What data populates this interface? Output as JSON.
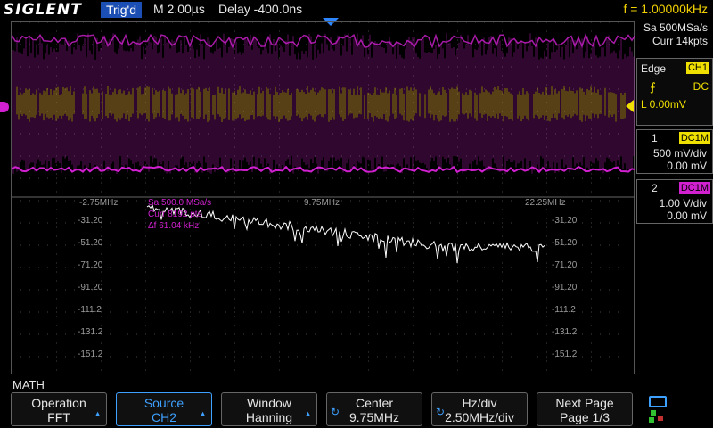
{
  "header": {
    "brand": "SIGLENT",
    "trigger_state": "Trig'd",
    "timebase": "M 2.00µs",
    "delay": "Delay -400.0ns",
    "frequency": "f = 1.00000kHz"
  },
  "acquisition": {
    "sample_rate": "Sa 500MSa/s",
    "memory_depth": "Curr 14kpts"
  },
  "trigger": {
    "type": "Edge",
    "source": "CH1",
    "coupling": "DC",
    "level": "L  0.00mV"
  },
  "channels": [
    {
      "number": "1",
      "coupling": "DC1M",
      "scale": "500 mV/div",
      "offset": "0.00 mV",
      "color": "#f0e000"
    },
    {
      "number": "2",
      "coupling": "DC1M",
      "scale": "1.00 V/div",
      "offset": "0.00 mV",
      "color": "#d020d0"
    }
  ],
  "fft": {
    "freq_labels": [
      "-2.75MHz",
      "9.75MHz",
      "22.25MHz"
    ],
    "db_labels": [
      "-31.20",
      "-51.20",
      "-71.20",
      "-91.20",
      "-111.2",
      "-131.2",
      "-151.2"
    ],
    "info_sa": "Sa 500.0 MSa/s",
    "info_curr": "Curr 8192 pts",
    "info_df": "Δf 61.04 kHz"
  },
  "menu": {
    "title": "MATH",
    "softkeys": [
      {
        "title": "Operation",
        "value": "FFT"
      },
      {
        "title": "Source",
        "value": "CH2"
      },
      {
        "title": "Window",
        "value": "Hanning"
      },
      {
        "title": "Center",
        "value": "9.75MHz"
      },
      {
        "title": "Hz/div",
        "value": "2.50MHz/div"
      },
      {
        "title": "Next Page",
        "value": "Page 1/3"
      }
    ]
  },
  "colors": {
    "ch1": "#f0e000",
    "ch2": "#d020d0",
    "accent": "#3ea0ff",
    "math": "#ffffff"
  }
}
